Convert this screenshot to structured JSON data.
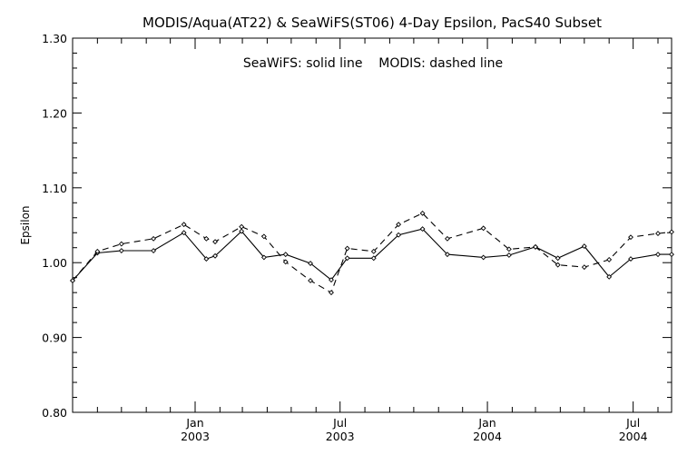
{
  "chart_data": {
    "type": "line",
    "title": "MODIS/Aqua(AT22) & SeaWiFS(ST06) 4-Day Epsilon, PacS40 Subset",
    "annotation": "SeaWiFS: solid line    MODIS: dashed line",
    "xlabel": "",
    "ylabel": "Epsilon",
    "xlim": [
      "2002-08-01",
      "2004-08-18"
    ],
    "ylim": [
      0.8,
      1.3
    ],
    "yticks": [
      0.8,
      0.9,
      1.0,
      1.1,
      1.2,
      1.3
    ],
    "ytick_labels": [
      "0.80",
      "0.90",
      "1.00",
      "1.10",
      "1.20",
      "1.30"
    ],
    "xticks": [
      {
        "date": "2003-01-01",
        "month": "Jan",
        "year": "2003"
      },
      {
        "date": "2003-07-01",
        "month": "Jul",
        "year": "2003"
      },
      {
        "date": "2004-01-01",
        "month": "Jan",
        "year": "2004"
      },
      {
        "date": "2004-07-01",
        "month": "Jul",
        "year": "2004"
      }
    ],
    "minor_ticks": [
      "2002-09-01",
      "2002-10-01",
      "2002-11-01",
      "2002-12-01",
      "2003-02-01",
      "2003-03-01",
      "2003-04-01",
      "2003-05-01",
      "2003-06-01",
      "2003-08-01",
      "2003-09-01",
      "2003-10-01",
      "2003-11-01",
      "2003-12-01",
      "2004-02-01",
      "2004-03-01",
      "2004-04-01",
      "2004-05-01",
      "2004-06-01",
      "2004-08-01"
    ],
    "grid": false,
    "series": [
      {
        "name": "SeaWiFS",
        "line_style": "solid",
        "color": "#000000",
        "x": [
          "2002-08-01",
          "2002-09-01",
          "2002-10-01",
          "2002-11-10",
          "2002-12-18",
          "2003-01-15",
          "2003-01-26",
          "2003-02-28",
          "2003-03-28",
          "2003-04-24",
          "2003-05-25",
          "2003-06-20",
          "2003-07-10",
          "2003-08-12",
          "2003-09-12",
          "2003-10-12",
          "2003-11-12",
          "2003-12-27",
          "2004-01-28",
          "2004-03-01",
          "2004-03-29",
          "2004-05-01",
          "2004-06-01",
          "2004-06-28",
          "2004-08-01",
          "2004-08-18"
        ],
        "y": [
          0.976,
          1.013,
          1.016,
          1.016,
          1.04,
          1.005,
          1.009,
          1.042,
          1.007,
          1.011,
          0.999,
          0.977,
          1.006,
          1.006,
          1.037,
          1.045,
          1.011,
          1.007,
          1.01,
          1.021,
          1.006,
          1.022,
          0.981,
          1.005,
          1.011,
          1.011
        ]
      },
      {
        "name": "MODIS",
        "line_style": "dashed",
        "color": "#000000",
        "x": [
          "2002-08-01",
          "2002-09-01",
          "2002-10-01",
          "2002-11-10",
          "2002-12-18",
          "2003-01-15",
          "2003-01-26",
          "2003-02-28",
          "2003-03-28",
          "2003-04-24",
          "2003-05-25",
          "2003-06-20",
          "2003-07-10",
          "2003-08-12",
          "2003-09-12",
          "2003-10-12",
          "2003-11-12",
          "2003-12-27",
          "2004-01-28",
          "2004-03-01",
          "2004-03-29",
          "2004-05-01",
          "2004-06-01",
          "2004-06-28",
          "2004-08-01",
          "2004-08-18"
        ],
        "y": [
          0.976,
          1.015,
          1.025,
          1.032,
          1.051,
          1.032,
          1.028,
          1.048,
          1.035,
          1.001,
          0.976,
          0.96,
          1.019,
          1.015,
          1.051,
          1.066,
          1.032,
          1.046,
          1.018,
          1.021,
          0.997,
          0.994,
          1.004,
          1.034,
          1.039,
          1.041
        ]
      }
    ]
  }
}
